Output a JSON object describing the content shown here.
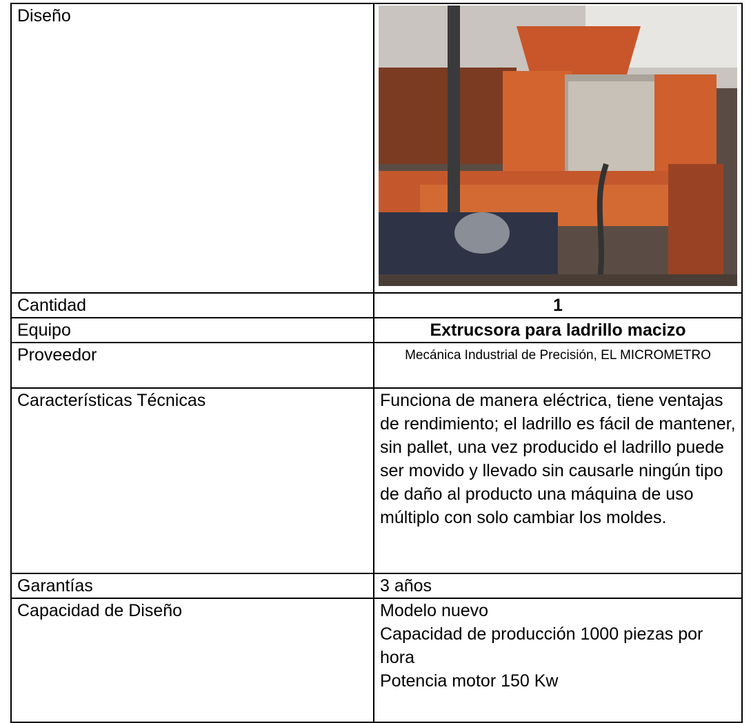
{
  "table": {
    "rows": [
      {
        "label": "Diseño"
      },
      {
        "label": "Cantidad",
        "value": "1"
      },
      {
        "label": "Equipo",
        "value": "Extrucsora para ladrillo macizo"
      },
      {
        "label": "Proveedor",
        "value": "Mecánica Industrial de Precisión, EL MICROMETRO"
      },
      {
        "label": "Características Técnicas",
        "value": "Funciona de manera eléctrica, tiene ventajas de rendimiento; el ladrillo es fácil de mantener, sin pallet, una vez producido el ladrillo puede ser movido y llevado sin causarle ningún tipo de daño al producto una máquina de uso múltiplo con solo cambiar los moldes."
      },
      {
        "label": "Garantías",
        "value": "3 años"
      },
      {
        "label": "Capacidad de Diseño",
        "lines": [
          "Modelo nuevo",
          "Capacidad de producción 1000 piezas por hora",
          "Potencia motor 150 Kw"
        ]
      }
    ]
  }
}
